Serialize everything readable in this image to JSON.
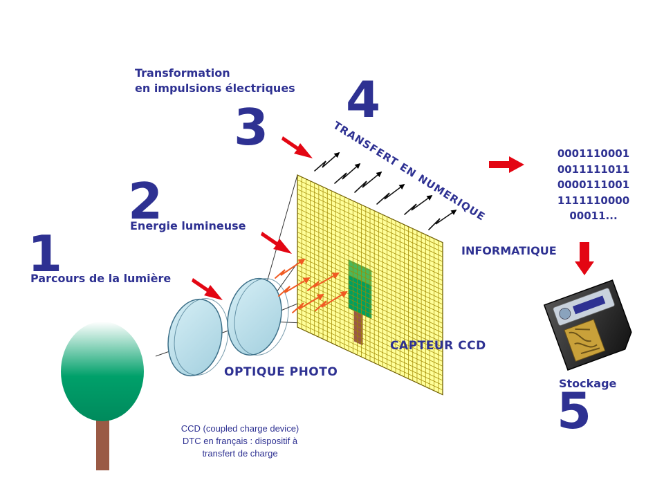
{
  "steps": [
    {
      "number": "1",
      "label": "Parcours de la lumière"
    },
    {
      "number": "2",
      "label": "Energie lumineuse"
    },
    {
      "number": "3",
      "label_lines": [
        "Transformation",
        "en impulsions électriques"
      ]
    },
    {
      "number": "4",
      "label": "TRANSFERT EN NUMERIQUE"
    },
    {
      "number": "5",
      "label": "Stockage"
    }
  ],
  "labels": {
    "optique": "OPTIQUE PHOTO",
    "capteur": "CAPTEUR CCD",
    "informatique": "INFORMATIQUE"
  },
  "binary_lines": [
    "0001110001",
    "0011111011",
    "0000111001",
    "1111110000",
    "00011..."
  ],
  "note_lines": [
    "CCD (coupled charge device)",
    "DTC en français : dispositif à",
    "transfert de charge"
  ],
  "colors": {
    "text": "#2e3192",
    "arrow_red": "#e30613",
    "spark_orange": "#f05a22",
    "sensor_fill": "#ffff99",
    "sensor_grid": "#a08800",
    "tree_crown": "#009966",
    "trunk": "#9a5a45",
    "lens": "#b7dce8"
  },
  "icons": {
    "memory_card": "smartmedia-card-icon",
    "tree": "tree-icon",
    "lens": "lens-icon",
    "red_arrow": "red-arrow-icon",
    "spark": "zigzag-arrow-icon"
  }
}
